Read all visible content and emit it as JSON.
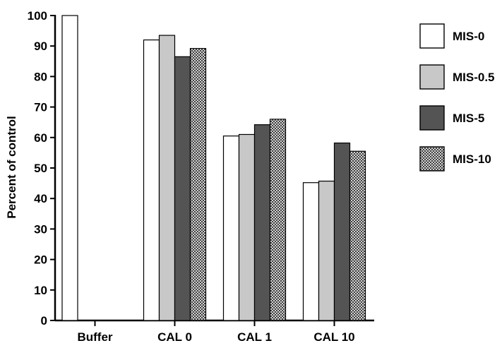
{
  "chart_data": {
    "type": "bar",
    "categories": [
      "Buffer",
      "CAL 0",
      "CAL 1",
      "CAL 10"
    ],
    "series": [
      {
        "name": "MIS-0",
        "values": [
          100,
          92.0,
          60.5,
          45.2
        ],
        "fill": "#ffffff",
        "pattern": "none"
      },
      {
        "name": "MIS-0.5",
        "values": [
          null,
          93.5,
          61.0,
          45.7
        ],
        "fill": "#c8c8c8",
        "pattern": "none"
      },
      {
        "name": "MIS-5",
        "values": [
          null,
          86.5,
          64.2,
          58.2
        ],
        "fill": "#545454",
        "pattern": "none"
      },
      {
        "name": "MIS-10",
        "values": [
          null,
          89.2,
          66.0,
          55.5
        ],
        "fill": "#ffffff",
        "pattern": "crosshatch"
      }
    ],
    "ylabel": "Percent of control",
    "xlabel": "",
    "ylim": [
      0,
      100
    ],
    "yticks": [
      0,
      10,
      20,
      30,
      40,
      50,
      60,
      70,
      80,
      90,
      100
    ],
    "legend_position": "right",
    "grid": false
  }
}
